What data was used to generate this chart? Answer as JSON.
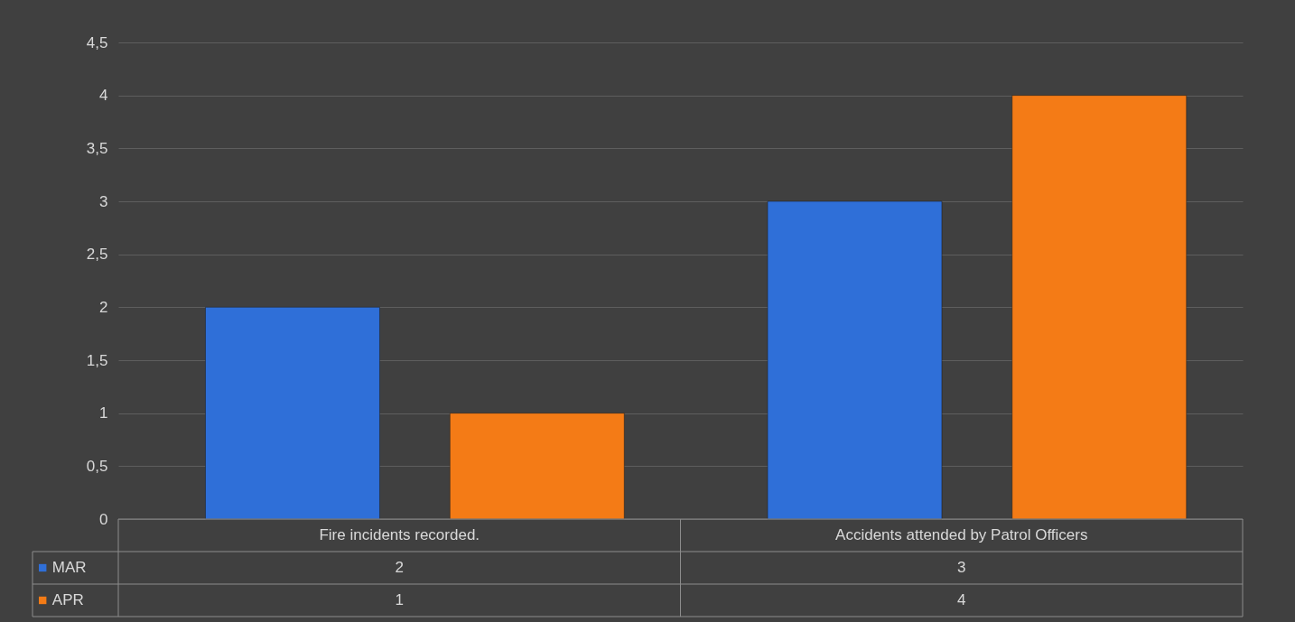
{
  "chart_data": {
    "type": "bar",
    "categories": [
      "Fire incidents recorded.",
      "Accidents attended by Patrol Officers"
    ],
    "series": [
      {
        "name": "MAR",
        "color": "#2f6fd8",
        "values": [
          2,
          3
        ]
      },
      {
        "name": "APR",
        "color": "#f47b16",
        "values": [
          1,
          4
        ]
      }
    ],
    "ylim": [
      0,
      4.5
    ],
    "yticks": [
      0,
      {
        "value": 0.5,
        "label": "0,5"
      },
      1,
      {
        "value": 1.5,
        "label": "1,5"
      },
      2,
      {
        "value": 2.5,
        "label": "2,5"
      },
      3,
      {
        "value": 3.5,
        "label": "3,5"
      },
      4,
      {
        "value": 4.5,
        "label": "4,5"
      }
    ],
    "grid": "y",
    "legend": "bottom",
    "data_labels": true
  }
}
